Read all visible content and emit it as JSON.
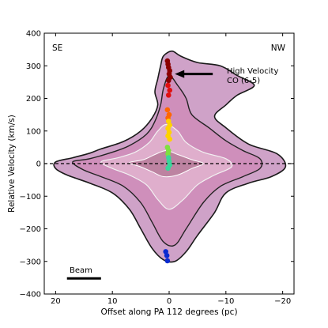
{
  "chart_data": {
    "type": "scatter",
    "xlabel": "Offset along PA 112 degrees (pc)",
    "ylabel": "Relative Velocity (km/s)",
    "xlim": [
      22,
      -22
    ],
    "ylim": [
      -400,
      400
    ],
    "x_ticks": [
      20,
      10,
      0,
      -10,
      -20
    ],
    "x_tick_labels": [
      "20",
      "10",
      "0",
      "−10",
      "−20"
    ],
    "y_ticks": [
      400,
      300,
      200,
      100,
      0,
      -100,
      -200,
      -300,
      -400
    ],
    "y_tick_labels": [
      "400",
      "300",
      "200",
      "100",
      "0",
      "−100",
      "−200",
      "−300",
      "−400"
    ],
    "grid": false,
    "corner_labels": {
      "left": "SE",
      "right": "NW"
    },
    "reference_line": {
      "y": 0,
      "style": "dashed"
    },
    "annotation": {
      "text_line1": "High Velocity",
      "text_line2": "CO (6-5)",
      "arrow_to": [
        -1.0,
        275
      ]
    },
    "beam": {
      "label": "Beam",
      "x_range": [
        18,
        12
      ],
      "y": -352
    },
    "contours_approx": [
      {
        "name": "outer",
        "points": [
          [
            20,
            5
          ],
          [
            17,
            18
          ],
          [
            14,
            32
          ],
          [
            12,
            45
          ],
          [
            8,
            68
          ],
          [
            5,
            100
          ],
          [
            3,
            140
          ],
          [
            2,
            180
          ],
          [
            2.5,
            220
          ],
          [
            2,
            260
          ],
          [
            1.5,
            300
          ],
          [
            1,
            330
          ],
          [
            -0.5,
            345
          ],
          [
            -2,
            330
          ],
          [
            -5,
            310
          ],
          [
            -9,
            300
          ],
          [
            -12,
            270
          ],
          [
            -15,
            240
          ],
          [
            -12,
            210
          ],
          [
            -10,
            180
          ],
          [
            -8,
            145
          ],
          [
            -10,
            110
          ],
          [
            -14,
            60
          ],
          [
            -19,
            30
          ],
          [
            -20.5,
            -10
          ],
          [
            -18,
            -40
          ],
          [
            -14,
            -60
          ],
          [
            -10,
            -90
          ],
          [
            -8,
            -150
          ],
          [
            -5,
            -220
          ],
          [
            -3,
            -270
          ],
          [
            -1,
            -300
          ],
          [
            1,
            -295
          ],
          [
            3,
            -260
          ],
          [
            5,
            -200
          ],
          [
            7,
            -140
          ],
          [
            10,
            -90
          ],
          [
            14,
            -60
          ],
          [
            18,
            -35
          ],
          [
            20,
            -15
          ]
        ]
      },
      {
        "name": "middle",
        "points": [
          [
            17,
            5
          ],
          [
            14,
            15
          ],
          [
            10,
            35
          ],
          [
            7,
            55
          ],
          [
            4,
            90
          ],
          [
            2.5,
            130
          ],
          [
            1.5,
            180
          ],
          [
            1,
            230
          ],
          [
            0,
            270
          ],
          [
            -1.5,
            240
          ],
          [
            -3,
            200
          ],
          [
            -4,
            150
          ],
          [
            -7,
            110
          ],
          [
            -10,
            70
          ],
          [
            -13,
            40
          ],
          [
            -16,
            15
          ],
          [
            -16,
            -15
          ],
          [
            -13,
            -40
          ],
          [
            -9,
            -70
          ],
          [
            -6,
            -120
          ],
          [
            -3,
            -200
          ],
          [
            -1,
            -250
          ],
          [
            1,
            -240
          ],
          [
            3,
            -180
          ],
          [
            5,
            -120
          ],
          [
            8,
            -70
          ],
          [
            12,
            -40
          ],
          [
            15,
            -20
          ]
        ]
      },
      {
        "name": "inner",
        "points": [
          [
            12,
            5
          ],
          [
            9,
            18
          ],
          [
            6,
            35
          ],
          [
            3.5,
            65
          ],
          [
            2,
            100
          ],
          [
            0.5,
            120
          ],
          [
            -1.5,
            100
          ],
          [
            -3,
            65
          ],
          [
            -6,
            35
          ],
          [
            -10,
            15
          ],
          [
            -11,
            -10
          ],
          [
            -8,
            -35
          ],
          [
            -5,
            -65
          ],
          [
            -2.5,
            -110
          ],
          [
            0,
            -140
          ],
          [
            2,
            -110
          ],
          [
            4,
            -65
          ],
          [
            7,
            -35
          ],
          [
            10,
            -15
          ]
        ]
      },
      {
        "name": "core",
        "points": [
          [
            7,
            3
          ],
          [
            4.5,
            12
          ],
          [
            2.5,
            28
          ],
          [
            0.5,
            40
          ],
          [
            -1.5,
            28
          ],
          [
            -4,
            12
          ],
          [
            -6,
            0
          ],
          [
            -4,
            -15
          ],
          [
            -1.5,
            -35
          ],
          [
            1,
            -40
          ],
          [
            3,
            -25
          ],
          [
            5,
            -10
          ]
        ]
      }
    ],
    "series": [
      {
        "name": "",
        "color": "#8b0000",
        "points": [
          [
            0.3,
            315
          ],
          [
            0.2,
            305
          ],
          [
            0.1,
            295
          ],
          [
            -0.1,
            285
          ],
          [
            0,
            275
          ],
          [
            -0.2,
            265
          ],
          [
            0.1,
            255
          ]
        ]
      },
      {
        "name": "",
        "color": "#e01010",
        "points": [
          [
            0.2,
            240
          ],
          [
            -0.1,
            225
          ],
          [
            0.1,
            210
          ]
        ]
      },
      {
        "name": "",
        "color": "#ff6600",
        "points": [
          [
            0.3,
            165
          ],
          [
            0,
            150
          ],
          [
            0.2,
            140
          ]
        ]
      },
      {
        "name": "",
        "color": "#ffd200",
        "points": [
          [
            0.1,
            130
          ],
          [
            -0.1,
            118
          ],
          [
            0.2,
            108
          ],
          [
            0,
            96
          ],
          [
            0.2,
            85
          ],
          [
            -0.1,
            75
          ]
        ]
      },
      {
        "name": "",
        "color": "#7ee040",
        "points": [
          [
            0.3,
            50
          ],
          [
            0.1,
            40
          ],
          [
            0.2,
            30
          ]
        ]
      },
      {
        "name": "",
        "color": "#3ad69a",
        "points": [
          [
            0.1,
            18
          ],
          [
            0,
            7
          ],
          [
            -0.1,
            -4
          ],
          [
            0.2,
            -14
          ]
        ]
      },
      {
        "name": "",
        "color": "#0a2ad0",
        "points": [
          [
            0.6,
            -270
          ],
          [
            0.4,
            -282
          ],
          [
            0.3,
            -298
          ]
        ]
      }
    ]
  }
}
